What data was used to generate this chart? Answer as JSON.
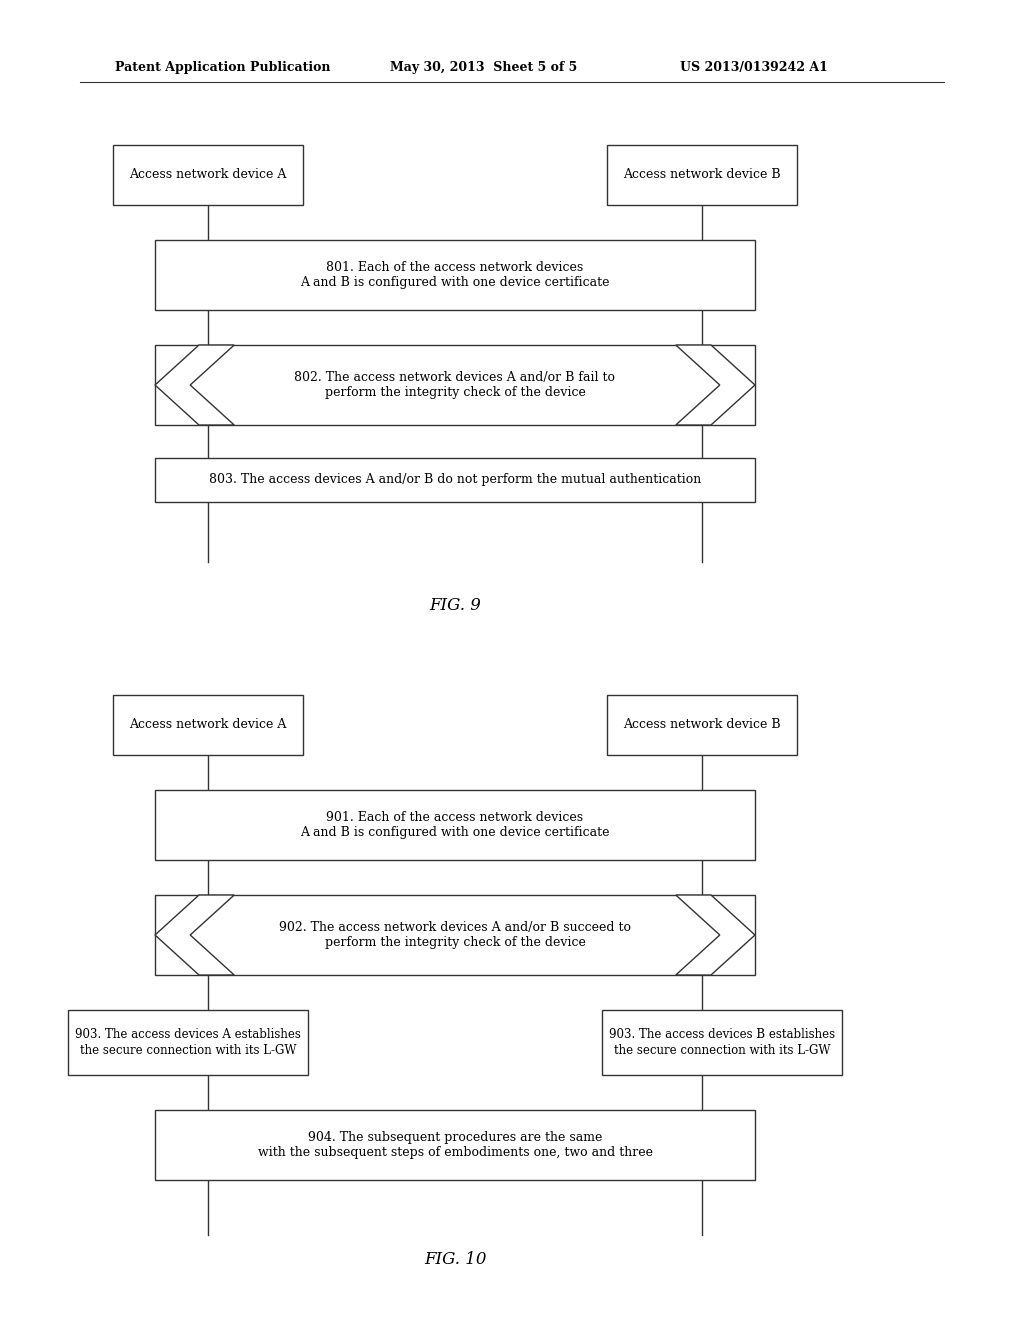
{
  "bg_color": "#ffffff",
  "header_left": "Patent Application Publication",
  "header_mid": "May 30, 2013  Sheet 5 of 5",
  "header_right": "US 2013/0139242 A1",
  "fig9": {
    "title": "FIG. 9",
    "box_A_label": "Access network device A",
    "box_B_label": "Access network device B",
    "step801_label": "801. Each of the access network devices\nA and B is configured with one device certificate",
    "step802_label": "802. The access network devices A and/or B fail to\nperform the integrity check of the device",
    "step803_label": "803. The access devices A and/or B do not perform the mutual authentication"
  },
  "fig10": {
    "title": "FIG. 10",
    "box_A_label": "Access network device A",
    "box_B_label": "Access network device B",
    "step901_label": "901. Each of the access network devices\nA and B is configured with one device certificate",
    "step902_label": "902. The access network devices A and/or B succeed to\nperform the integrity check of the device",
    "step903A_label": "903. The access devices A establishes\nthe secure connection with its L-GW",
    "step903B_label": "903. The access devices B establishes\nthe secure connection with its L-GW",
    "step904_label": "904. The subsequent procedures are the same\nwith the subsequent steps of embodiments one, two and three"
  }
}
